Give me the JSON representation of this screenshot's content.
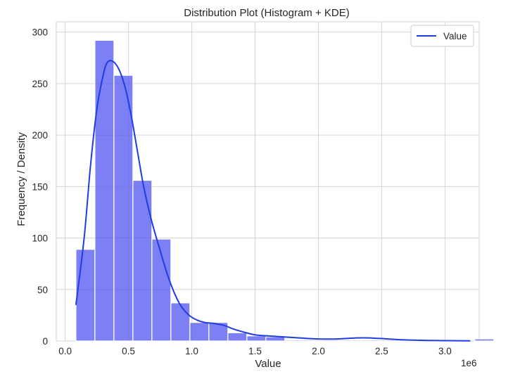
{
  "chart_data": {
    "type": "bar",
    "title": "Distribution Plot (Histogram + KDE)",
    "xlabel": "Value",
    "ylabel": "Frequency / Density",
    "x_offset_label": "1e6",
    "x_scale": 1000000,
    "xlim": [
      -0.07,
      3.27
    ],
    "ylim": [
      0,
      310
    ],
    "xticks": [
      {
        "value": 0.0,
        "label": "0.0"
      },
      {
        "value": 0.5,
        "label": "0.5"
      },
      {
        "value": 1.0,
        "label": "1.0"
      },
      {
        "value": 1.5,
        "label": "1.5"
      },
      {
        "value": 2.0,
        "label": "2.0"
      },
      {
        "value": 2.5,
        "label": "2.5"
      },
      {
        "value": 3.0,
        "label": "3.0"
      }
    ],
    "yticks": [
      {
        "value": 0,
        "label": "0"
      },
      {
        "value": 50,
        "label": "50"
      },
      {
        "value": 100,
        "label": "100"
      },
      {
        "value": 150,
        "label": "150"
      },
      {
        "value": 200,
        "label": "200"
      },
      {
        "value": 250,
        "label": "250"
      },
      {
        "value": 300,
        "label": "300"
      }
    ],
    "grid": true,
    "legend": {
      "placement": "top-right",
      "entries": [
        {
          "label": "Value",
          "color": "#1f3de0"
        }
      ]
    },
    "histogram": {
      "bin_start": 0.085,
      "bin_width": 0.15,
      "counts": [
        89,
        292,
        258,
        156,
        99,
        37,
        18,
        18,
        8,
        5,
        4,
        1,
        1,
        1,
        1,
        1,
        1,
        1,
        0,
        0,
        0,
        2
      ],
      "color": "#4b4ff0"
    },
    "kde": {
      "name": "Value",
      "color": "#1f3de0",
      "x": [
        0.085,
        0.15,
        0.2,
        0.25,
        0.3,
        0.33,
        0.37,
        0.42,
        0.47,
        0.52,
        0.57,
        0.62,
        0.68,
        0.75,
        0.82,
        0.9,
        0.97,
        1.03,
        1.1,
        1.18,
        1.26,
        1.32,
        1.4,
        1.5,
        1.6,
        1.72,
        1.85,
        2.0,
        2.15,
        2.3,
        2.4,
        2.55,
        2.7,
        2.9,
        3.05,
        3.2
      ],
      "y": [
        35,
        100,
        170,
        225,
        258,
        270,
        272,
        265,
        248,
        220,
        185,
        150,
        118,
        88,
        60,
        37,
        26,
        21,
        18,
        17,
        15,
        12,
        9,
        6,
        5,
        4,
        3,
        2,
        2,
        3,
        3,
        2,
        1,
        0.5,
        0.3,
        0.2
      ]
    }
  }
}
